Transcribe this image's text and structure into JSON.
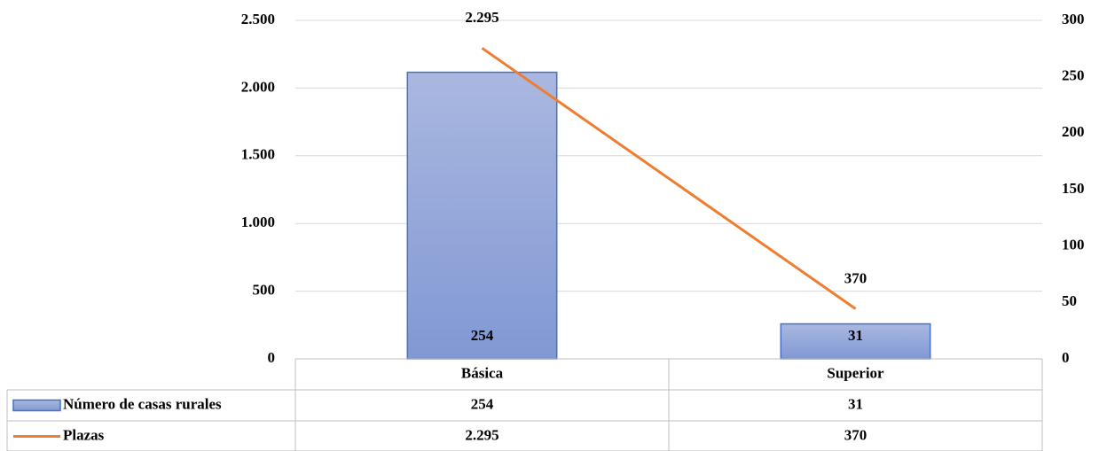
{
  "chart_data": {
    "type": "combo",
    "categories": [
      "Básica",
      "Superior"
    ],
    "series": [
      {
        "name": "Número de casas rurales",
        "type": "bar",
        "axis": "y2",
        "color": "#4472c4",
        "values": [
          254,
          31
        ]
      },
      {
        "name": "Plazas",
        "type": "line",
        "color": "#ed7d31",
        "values": [
          2295,
          370
        ],
        "value_labels": [
          "2.295",
          "370"
        ]
      }
    ],
    "ylim": [
      0,
      2500
    ],
    "yticks": [
      0,
      500,
      {
        "value": 1000,
        "label": "1.000"
      },
      {
        "value": 1500,
        "label": "1.500"
      },
      {
        "value": 2000,
        "label": "2.000"
      },
      {
        "value": 2500,
        "label": "2.500"
      }
    ],
    "y2lim": [
      0,
      300
    ],
    "y2ticks": [
      0,
      50,
      100,
      150,
      200,
      250,
      300
    ],
    "grid": true,
    "data_table": true
  }
}
